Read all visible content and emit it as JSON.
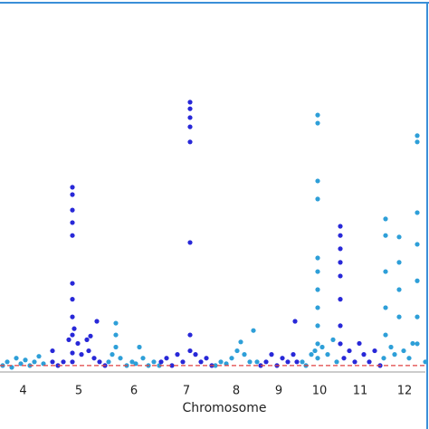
{
  "chart_data": {
    "type": "manhattan",
    "x_label": "Chromosome",
    "xlim": [
      0,
      474
    ],
    "ylim": [
      0,
      10
    ],
    "threshold": 0.2,
    "threshold_color": "#e04040",
    "series": [
      {
        "name": "4",
        "color": "#2e9fd8",
        "x": [
          3,
          8,
          13,
          18,
          23,
          28,
          33,
          38,
          43,
          48
        ],
        "values": [
          0.2,
          0.3,
          0.15,
          0.4,
          0.25,
          0.35,
          0.2,
          0.3,
          0.45,
          0.25
        ]
      },
      {
        "name": "5",
        "color": "#2828d8",
        "x": [
          58,
          58,
          64,
          70,
          76,
          80,
          80,
          80,
          80,
          80,
          80,
          80,
          80,
          80,
          80,
          80,
          82,
          86,
          90,
          96,
          98,
          100,
          104,
          107,
          110,
          116
        ],
        "values": [
          0.6,
          0.3,
          0.2,
          0.3,
          0.9,
          5.04,
          4.84,
          4.42,
          4.08,
          3.73,
          2.43,
          2.0,
          1.52,
          1.03,
          0.54,
          0.3,
          1.2,
          0.8,
          0.5,
          0.9,
          0.6,
          1.0,
          0.4,
          1.4,
          0.3,
          0.2
        ]
      },
      {
        "name": "6",
        "color": "#2e9fd8",
        "x": [
          120,
          124,
          128,
          128,
          128,
          133,
          140,
          146,
          150,
          154,
          158,
          164,
          170,
          176
        ],
        "values": [
          0.3,
          0.5,
          1.35,
          1.03,
          0.7,
          0.4,
          0.2,
          0.3,
          0.25,
          0.7,
          0.4,
          0.2,
          0.3,
          0.2
        ]
      },
      {
        "name": "7",
        "color": "#2828d8",
        "x": [
          178,
          184,
          190,
          196,
          202,
          210,
          210,
          210,
          210,
          210,
          210,
          210,
          210,
          216,
          222,
          228,
          234
        ],
        "values": [
          0.3,
          0.4,
          0.2,
          0.5,
          0.3,
          7.35,
          7.17,
          6.93,
          6.68,
          6.27,
          3.54,
          1.03,
          0.6,
          0.5,
          0.3,
          0.4,
          0.2
        ]
      },
      {
        "name": "8",
        "color": "#2e9fd8",
        "x": [
          238,
          244,
          250,
          256,
          262,
          266,
          270,
          276,
          280,
          284
        ],
        "values": [
          0.2,
          0.3,
          0.25,
          0.4,
          0.6,
          0.84,
          0.5,
          0.3,
          1.15,
          0.3
        ]
      },
      {
        "name": "9",
        "color": "#2828d8",
        "x": [
          288,
          294,
          300,
          306,
          312,
          318,
          324,
          326,
          328
        ],
        "values": [
          0.2,
          0.3,
          0.5,
          0.2,
          0.4,
          0.3,
          0.5,
          1.4,
          0.3
        ]
      },
      {
        "name": "10",
        "color": "#2e9fd8",
        "x": [
          334,
          338,
          344,
          348,
          351,
          351,
          351,
          351,
          351,
          351,
          351,
          351,
          351,
          351,
          351,
          356,
          362,
          368,
          372
        ],
        "values": [
          0.3,
          0.2,
          0.5,
          0.6,
          7.0,
          6.78,
          5.21,
          4.72,
          3.12,
          2.75,
          2.26,
          1.77,
          1.28,
          0.79,
          0.4,
          0.7,
          0.5,
          0.9,
          0.3
        ]
      },
      {
        "name": "11",
        "color": "#2828d8",
        "x": [
          376,
          376,
          376,
          376,
          376,
          376,
          376,
          376,
          380,
          386,
          392,
          397,
          402,
          408,
          414,
          420
        ],
        "values": [
          3.98,
          3.73,
          3.37,
          3.0,
          2.63,
          2.0,
          1.28,
          0.79,
          0.4,
          0.6,
          0.3,
          0.8,
          0.5,
          0.3,
          0.6,
          0.2
        ]
      },
      {
        "name": "12",
        "color": "#2e9fd8",
        "x": [
          424,
          426,
          426,
          426,
          426,
          426,
          432,
          436,
          441,
          441,
          441,
          441,
          446,
          452,
          456,
          461,
          461,
          461,
          461,
          461,
          461,
          461,
          470
        ],
        "values": [
          0.4,
          4.18,
          3.73,
          2.75,
          1.77,
          1.03,
          0.7,
          0.5,
          3.69,
          3.0,
          2.26,
          1.52,
          0.6,
          0.4,
          0.8,
          6.44,
          6.27,
          4.35,
          3.49,
          2.5,
          1.52,
          0.79,
          0.3
        ]
      }
    ]
  }
}
